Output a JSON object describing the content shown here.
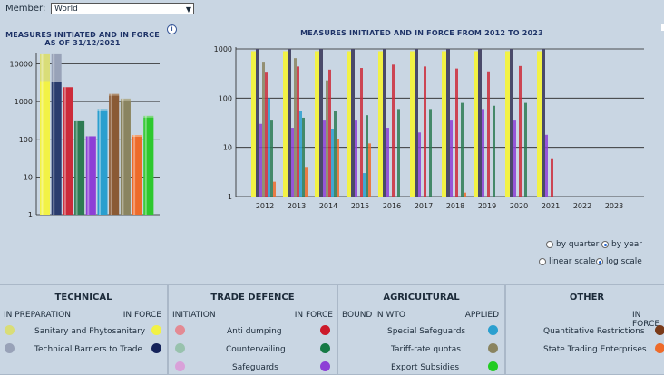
{
  "member": {
    "label": "Member:",
    "selected": "World"
  },
  "left_chart": {
    "title_line1": "MEASURES INITIATED AND IN FORCE",
    "title_line2": "AS OF 31/12/2021",
    "info_icon": "i",
    "chart_data": {
      "type": "bar",
      "scale": "log",
      "ylim": [
        1,
        20000
      ],
      "yticks": [
        "10000",
        "1000",
        "100",
        "10",
        "1"
      ],
      "series": [
        {
          "name": "Sanitary and Phytosanitary",
          "initiated": 3500,
          "in_force": 18000,
          "color_light": "#d9dd78",
          "color_dark": "#f2f245"
        },
        {
          "name": "Technical Barriers to Trade",
          "initiated": 3400,
          "in_force": 18000,
          "color_light": "#98a2b8",
          "color_dark": "#2a3c6e"
        },
        {
          "name": "Anti dumping",
          "initiated": 2400,
          "in_force": 2100,
          "color_light": "#e38a93",
          "color_dark": "#cc2b3a"
        },
        {
          "name": "Countervailing",
          "initiated": 300,
          "in_force": 230,
          "color_light": "#98c2ad",
          "color_dark": "#2d7b53"
        },
        {
          "name": "Safeguards",
          "initiated": 120,
          "in_force": 70,
          "color_light": "#d9a1d9",
          "color_dark": "#8d3fd6"
        },
        {
          "name": "Special Safeguards",
          "initiated": 0,
          "in_force": 640,
          "color_light": "#7bbcd9",
          "color_dark": "#2a9fcf"
        },
        {
          "name": "State Trading Enterprises",
          "initiated": 0,
          "in_force": 1600,
          "color_light": "#b08f70",
          "color_dark": "#8a5a35"
        },
        {
          "name": "Tariff-rate quotas",
          "initiated": 0,
          "in_force": 1200,
          "color_light": "#b0ad90",
          "color_dark": "#8a8460"
        },
        {
          "name": "Quantitative Restrictions",
          "initiated": 0,
          "in_force": 130,
          "color_light": "#f2a070",
          "color_dark": "#ee6b2a"
        },
        {
          "name": "Export Subsidies",
          "initiated": 0,
          "in_force": 420,
          "color_light": "#7fd97f",
          "color_dark": "#2ec82e"
        }
      ]
    }
  },
  "right_chart": {
    "title": "MEASURES INITIATED AND IN FORCE FROM 2012 TO 2023",
    "chart_data": {
      "type": "bar",
      "scale": "log",
      "ylim": [
        1,
        1000
      ],
      "yticks": [
        "1000",
        "100",
        "10",
        "1"
      ],
      "categories": [
        "2012",
        "2013",
        "2014",
        "2015",
        "2016",
        "2017",
        "2018",
        "2019",
        "2020",
        "2021",
        "2022",
        "2023"
      ],
      "series": [
        {
          "name": "Sanitary and Phytosanitary",
          "color": "#f2f245",
          "values": [
            900,
            900,
            900,
            900,
            900,
            900,
            900,
            900,
            900,
            900,
            0,
            0
          ]
        },
        {
          "name": "Technical Barriers to Trade",
          "color": "#4a4a6a",
          "values": [
            1000,
            1000,
            1000,
            1000,
            1000,
            1000,
            1000,
            1000,
            1000,
            1000,
            0,
            0
          ]
        },
        {
          "name": "Safeguards",
          "color": "#8d3fd6",
          "values": [
            30,
            25,
            35,
            35,
            25,
            20,
            35,
            60,
            35,
            18,
            0,
            0
          ]
        },
        {
          "name": "Tariff-rate quotas",
          "color": "#8a8460",
          "values": [
            550,
            650,
            230,
            0,
            0,
            0,
            0,
            0,
            0,
            0,
            0,
            0
          ]
        },
        {
          "name": "Anti dumping",
          "color": "#cc2b3a",
          "values": [
            330,
            440,
            380,
            410,
            480,
            440,
            400,
            350,
            450,
            6,
            0,
            0
          ]
        },
        {
          "name": "Special Safeguards",
          "color": "#2a9fcf",
          "values": [
            100,
            55,
            24,
            3,
            0,
            0,
            0,
            0,
            0,
            0,
            0,
            0
          ]
        },
        {
          "name": "Countervailing",
          "color": "#2d7b53",
          "values": [
            35,
            40,
            55,
            45,
            60,
            60,
            80,
            70,
            80,
            0,
            0,
            0
          ]
        },
        {
          "name": "Quantitative Restrictions",
          "color": "#ee6b2a",
          "values": [
            2,
            4,
            15,
            12,
            0,
            0,
            1.2,
            0,
            0,
            0,
            0,
            0
          ]
        }
      ]
    }
  },
  "scale_options": {
    "by_quarter": "by quarter",
    "by_year": "by year",
    "linear": "linear scale",
    "log": "log scale"
  },
  "panels": {
    "technical": {
      "title": "TECHNICAL",
      "col_left": "IN PREPARATION",
      "col_right": "IN FORCE",
      "rows": [
        {
          "label": "Sanitary and Phytosanitary",
          "left_color": "#d9dd78",
          "right_color": "#f2f245"
        },
        {
          "label": "Technical Barriers to Trade",
          "left_color": "#98a2b8",
          "right_color": "#15235a"
        }
      ]
    },
    "trade_defence": {
      "title": "TRADE DEFENCE",
      "col_left": "INITIATION",
      "col_right": "IN FORCE",
      "rows": [
        {
          "label": "Anti dumping",
          "left_color": "#e38a93",
          "right_color": "#cc1a2a"
        },
        {
          "label": "Countervailing",
          "left_color": "#98c2ad",
          "right_color": "#157a45"
        },
        {
          "label": "Safeguards",
          "left_color": "#d9a1d9",
          "right_color": "#8d3fd6"
        }
      ]
    },
    "agricultural": {
      "title": "AGRICULTURAL",
      "col_left": "BOUND IN WTO",
      "col_right": "APPLIED",
      "rows": [
        {
          "label": "Special Safeguards",
          "right_color": "#2a9fcf"
        },
        {
          "label": "Tariff-rate quotas",
          "right_color": "#8a8460"
        },
        {
          "label": "Export Subsidies",
          "right_color": "#22cc22"
        }
      ]
    },
    "other": {
      "title": "OTHER",
      "col_right": "IN FORCE",
      "rows": [
        {
          "label": "Quantitative Restrictions",
          "right_color": "#7a3a18"
        },
        {
          "label": "State Trading Enterprises",
          "right_color": "#ee6b2a"
        }
      ]
    }
  }
}
